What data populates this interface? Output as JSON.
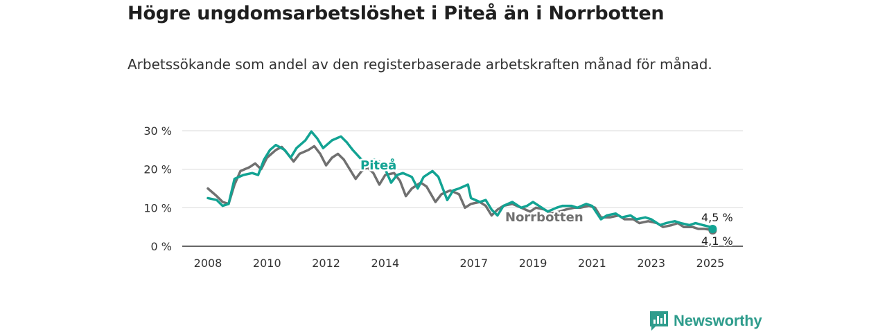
{
  "title": "Högre ungdomsarbetslöshet i Piteå än i Norrbotten",
  "subtitle": "Arbetssökande som andel av den registerbaserade arbetskraften månad för månad.",
  "brand": "Newsworthy",
  "colors": {
    "pitea": "#12a393",
    "norrbotten": "#707070",
    "grid": "#d9d9d9",
    "axis": "#333333"
  },
  "chart_data": {
    "type": "line",
    "x_ticks": [
      "2008",
      "2010",
      "2012",
      "2014",
      "2017",
      "2019",
      "2021",
      "2023",
      "2025"
    ],
    "y_ticks": [
      "0 %",
      "10 %",
      "20 %",
      "30 %"
    ],
    "ylim": [
      0,
      30
    ],
    "xlim": [
      2007.75,
      2026
    ],
    "grid": true,
    "series": [
      {
        "name": "Piteå",
        "end_label": "4,5 %",
        "points": [
          [
            2008.0,
            12.5
          ],
          [
            2008.3,
            12.0
          ],
          [
            2008.5,
            10.5
          ],
          [
            2008.7,
            11.0
          ],
          [
            2008.9,
            17.5
          ],
          [
            2009.2,
            18.5
          ],
          [
            2009.5,
            19.0
          ],
          [
            2009.7,
            18.5
          ],
          [
            2009.9,
            22.5
          ],
          [
            2010.1,
            25.0
          ],
          [
            2010.3,
            26.3
          ],
          [
            2010.6,
            25.0
          ],
          [
            2010.8,
            23.0
          ],
          [
            2011.0,
            25.5
          ],
          [
            2011.3,
            27.5
          ],
          [
            2011.5,
            29.8
          ],
          [
            2011.7,
            28.0
          ],
          [
            2011.9,
            25.5
          ],
          [
            2012.2,
            27.5
          ],
          [
            2012.5,
            28.5
          ],
          [
            2012.7,
            27.0
          ],
          [
            2012.9,
            25.0
          ],
          [
            2013.2,
            22.5
          ],
          [
            2013.4,
            21.5
          ],
          [
            2013.6,
            22.5
          ],
          [
            2013.8,
            22.0
          ],
          [
            2014.0,
            20.0
          ],
          [
            2014.2,
            16.5
          ],
          [
            2014.4,
            18.5
          ],
          [
            2014.6,
            19.0
          ],
          [
            2014.9,
            18.0
          ],
          [
            2015.1,
            15.0
          ],
          [
            2015.3,
            18.0
          ],
          [
            2015.6,
            19.5
          ],
          [
            2015.8,
            18.0
          ],
          [
            2016.1,
            12.0
          ],
          [
            2016.3,
            14.5
          ],
          [
            2016.5,
            15.0
          ],
          [
            2016.8,
            16.0
          ],
          [
            2016.9,
            12.5
          ],
          [
            2017.2,
            11.5
          ],
          [
            2017.4,
            12.0
          ],
          [
            2017.6,
            9.5
          ],
          [
            2017.8,
            8.0
          ],
          [
            2018.0,
            10.5
          ],
          [
            2018.3,
            11.5
          ],
          [
            2018.6,
            10.0
          ],
          [
            2018.8,
            10.5
          ],
          [
            2019.0,
            11.5
          ],
          [
            2019.3,
            10.0
          ],
          [
            2019.5,
            9.0
          ],
          [
            2019.8,
            10.0
          ],
          [
            2020.0,
            10.5
          ],
          [
            2020.3,
            10.5
          ],
          [
            2020.5,
            10.0
          ],
          [
            2020.8,
            11.0
          ],
          [
            2021.0,
            10.5
          ],
          [
            2021.3,
            7.0
          ],
          [
            2021.5,
            8.0
          ],
          [
            2021.8,
            8.5
          ],
          [
            2022.0,
            7.5
          ],
          [
            2022.3,
            8.0
          ],
          [
            2022.5,
            7.0
          ],
          [
            2022.8,
            7.5
          ],
          [
            2023.0,
            7.0
          ],
          [
            2023.3,
            5.5
          ],
          [
            2023.5,
            6.0
          ],
          [
            2023.8,
            6.5
          ],
          [
            2024.0,
            6.0
          ],
          [
            2024.3,
            5.5
          ],
          [
            2024.5,
            6.0
          ],
          [
            2024.75,
            5.5
          ],
          [
            2025.0,
            5.0
          ],
          [
            2025.08,
            4.5
          ]
        ]
      },
      {
        "name": "Norrbotten",
        "end_label": "4,1 %",
        "points": [
          [
            2008.0,
            15.0
          ],
          [
            2008.3,
            13.0
          ],
          [
            2008.5,
            11.5
          ],
          [
            2008.7,
            11.0
          ],
          [
            2008.9,
            16.0
          ],
          [
            2009.1,
            19.5
          ],
          [
            2009.4,
            20.5
          ],
          [
            2009.6,
            21.5
          ],
          [
            2009.8,
            20.0
          ],
          [
            2010.0,
            23.0
          ],
          [
            2010.3,
            25.0
          ],
          [
            2010.5,
            25.8
          ],
          [
            2010.7,
            24.0
          ],
          [
            2010.9,
            22.0
          ],
          [
            2011.1,
            24.0
          ],
          [
            2011.4,
            25.0
          ],
          [
            2011.6,
            26.0
          ],
          [
            2011.8,
            24.0
          ],
          [
            2012.0,
            21.0
          ],
          [
            2012.2,
            23.0
          ],
          [
            2012.4,
            24.0
          ],
          [
            2012.6,
            22.5
          ],
          [
            2012.8,
            20.0
          ],
          [
            2013.0,
            17.5
          ],
          [
            2013.2,
            19.5
          ],
          [
            2013.4,
            20.5
          ],
          [
            2013.6,
            19.0
          ],
          [
            2013.8,
            16.0
          ],
          [
            2014.0,
            18.5
          ],
          [
            2014.3,
            19.0
          ],
          [
            2014.5,
            17.0
          ],
          [
            2014.7,
            13.0
          ],
          [
            2014.9,
            15.0
          ],
          [
            2015.2,
            16.5
          ],
          [
            2015.4,
            15.5
          ],
          [
            2015.7,
            11.5
          ],
          [
            2015.9,
            13.5
          ],
          [
            2016.2,
            14.5
          ],
          [
            2016.5,
            13.5
          ],
          [
            2016.7,
            10.0
          ],
          [
            2016.9,
            11.0
          ],
          [
            2017.2,
            11.5
          ],
          [
            2017.4,
            10.5
          ],
          [
            2017.6,
            8.0
          ],
          [
            2017.8,
            9.5
          ],
          [
            2018.0,
            10.5
          ],
          [
            2018.3,
            11.0
          ],
          [
            2018.6,
            10.0
          ],
          [
            2018.9,
            9.0
          ],
          [
            2019.1,
            10.0
          ],
          [
            2019.4,
            9.5
          ],
          [
            2019.6,
            8.5
          ],
          [
            2019.9,
            9.0
          ],
          [
            2020.1,
            9.5
          ],
          [
            2020.4,
            10.0
          ],
          [
            2020.6,
            10.0
          ],
          [
            2020.9,
            10.5
          ],
          [
            2021.1,
            10.0
          ],
          [
            2021.3,
            7.5
          ],
          [
            2021.6,
            7.5
          ],
          [
            2021.9,
            8.0
          ],
          [
            2022.1,
            7.0
          ],
          [
            2022.4,
            7.0
          ],
          [
            2022.6,
            6.0
          ],
          [
            2022.9,
            6.5
          ],
          [
            2023.2,
            6.0
          ],
          [
            2023.4,
            5.0
          ],
          [
            2023.7,
            5.5
          ],
          [
            2023.9,
            6.0
          ],
          [
            2024.1,
            5.0
          ],
          [
            2024.4,
            5.0
          ],
          [
            2024.6,
            4.5
          ],
          [
            2024.8,
            4.5
          ],
          [
            2025.0,
            4.3
          ],
          [
            2025.08,
            4.1
          ]
        ]
      }
    ]
  }
}
